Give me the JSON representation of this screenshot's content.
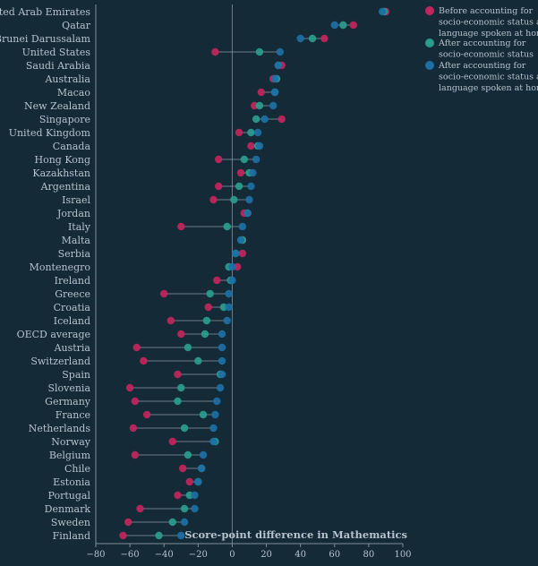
{
  "chart_data": {
    "type": "scatter",
    "subtype": "dumbbell",
    "x_axis_label": "Score-point difference in Mathematics",
    "xlim": [
      -80,
      100
    ],
    "xticks": [
      -80,
      -60,
      -40,
      -20,
      0,
      20,
      40,
      60,
      80,
      100
    ],
    "legend_position": "top-right",
    "series": [
      {
        "name": "Before accounting for socio-economic status and language spoken at home",
        "color": "#c2255c"
      },
      {
        "name": "After accounting for socio-economic status",
        "color": "#2a9d8f"
      },
      {
        "name": "After accounting for socio-economic status and language spoken at home",
        "color": "#1d6fa5"
      }
    ],
    "rows": [
      {
        "label": "United Arab Emirates",
        "values": [
          90,
          89,
          88
        ]
      },
      {
        "label": "Qatar",
        "values": [
          71,
          65,
          60
        ]
      },
      {
        "label": "Brunei Darussalam",
        "values": [
          54,
          47,
          40
        ]
      },
      {
        "label": "United States",
        "values": [
          -10,
          16,
          28
        ]
      },
      {
        "label": "Saudi Arabia",
        "values": [
          29,
          27,
          27
        ]
      },
      {
        "label": "Australia",
        "values": [
          24,
          26,
          25
        ]
      },
      {
        "label": "Macao",
        "values": [
          17,
          25,
          25
        ]
      },
      {
        "label": "New Zealand",
        "values": [
          13,
          16,
          24
        ]
      },
      {
        "label": "Singapore",
        "values": [
          29,
          14,
          19
        ]
      },
      {
        "label": "United Kingdom",
        "values": [
          4,
          11,
          15
        ]
      },
      {
        "label": "Canada",
        "values": [
          11,
          15,
          16
        ]
      },
      {
        "label": "Hong Kong",
        "values": [
          -8,
          7,
          14
        ]
      },
      {
        "label": "Kazakhstan",
        "values": [
          5,
          10,
          12
        ]
      },
      {
        "label": "Argentina",
        "values": [
          -8,
          4,
          11
        ]
      },
      {
        "label": "Israel",
        "values": [
          -11,
          1,
          10
        ]
      },
      {
        "label": "Jordan",
        "values": [
          7,
          9,
          9
        ]
      },
      {
        "label": "Italy",
        "values": [
          -30,
          -3,
          6
        ]
      },
      {
        "label": "Malta",
        "values": [
          6,
          6,
          5
        ]
      },
      {
        "label": "Serbia",
        "values": [
          6,
          2,
          2
        ]
      },
      {
        "label": "Montenegro",
        "values": [
          3,
          -2,
          0
        ]
      },
      {
        "label": "Ireland",
        "values": [
          -9,
          -1,
          0
        ]
      },
      {
        "label": "Greece",
        "values": [
          -40,
          -13,
          -2
        ]
      },
      {
        "label": "Croatia",
        "values": [
          -14,
          -5,
          -2
        ]
      },
      {
        "label": "Iceland",
        "values": [
          -36,
          -15,
          -3
        ]
      },
      {
        "label": "OECD average",
        "values": [
          -30,
          -16,
          -6
        ]
      },
      {
        "label": "Austria",
        "values": [
          -56,
          -26,
          -6
        ]
      },
      {
        "label": "Switzerland",
        "values": [
          -52,
          -20,
          -6
        ]
      },
      {
        "label": "Spain",
        "values": [
          -32,
          -7,
          -6
        ]
      },
      {
        "label": "Slovenia",
        "values": [
          -60,
          -30,
          -7
        ]
      },
      {
        "label": "Germany",
        "values": [
          -57,
          -32,
          -9
        ]
      },
      {
        "label": "France",
        "values": [
          -50,
          -17,
          -10
        ]
      },
      {
        "label": "Netherlands",
        "values": [
          -58,
          -28,
          -11
        ]
      },
      {
        "label": "Norway",
        "values": [
          -35,
          -10,
          -11
        ]
      },
      {
        "label": "Belgium",
        "values": [
          -57,
          -26,
          -17
        ]
      },
      {
        "label": "Chile",
        "values": [
          -29,
          -18,
          -18
        ]
      },
      {
        "label": "Estonia",
        "values": [
          -25,
          -20,
          -20
        ]
      },
      {
        "label": "Portugal",
        "values": [
          -32,
          -25,
          -22
        ]
      },
      {
        "label": "Denmark",
        "values": [
          -54,
          -28,
          -22
        ]
      },
      {
        "label": "Sweden",
        "values": [
          -61,
          -35,
          -28
        ]
      },
      {
        "label": "Finland",
        "values": [
          -64,
          -43,
          -30
        ]
      }
    ]
  },
  "colors": {
    "background": "#142a36",
    "text": "#b6c2cc",
    "axis": "#7f8f9b",
    "zero_line": "#6f7f8b",
    "connector": "#8a98a3"
  }
}
